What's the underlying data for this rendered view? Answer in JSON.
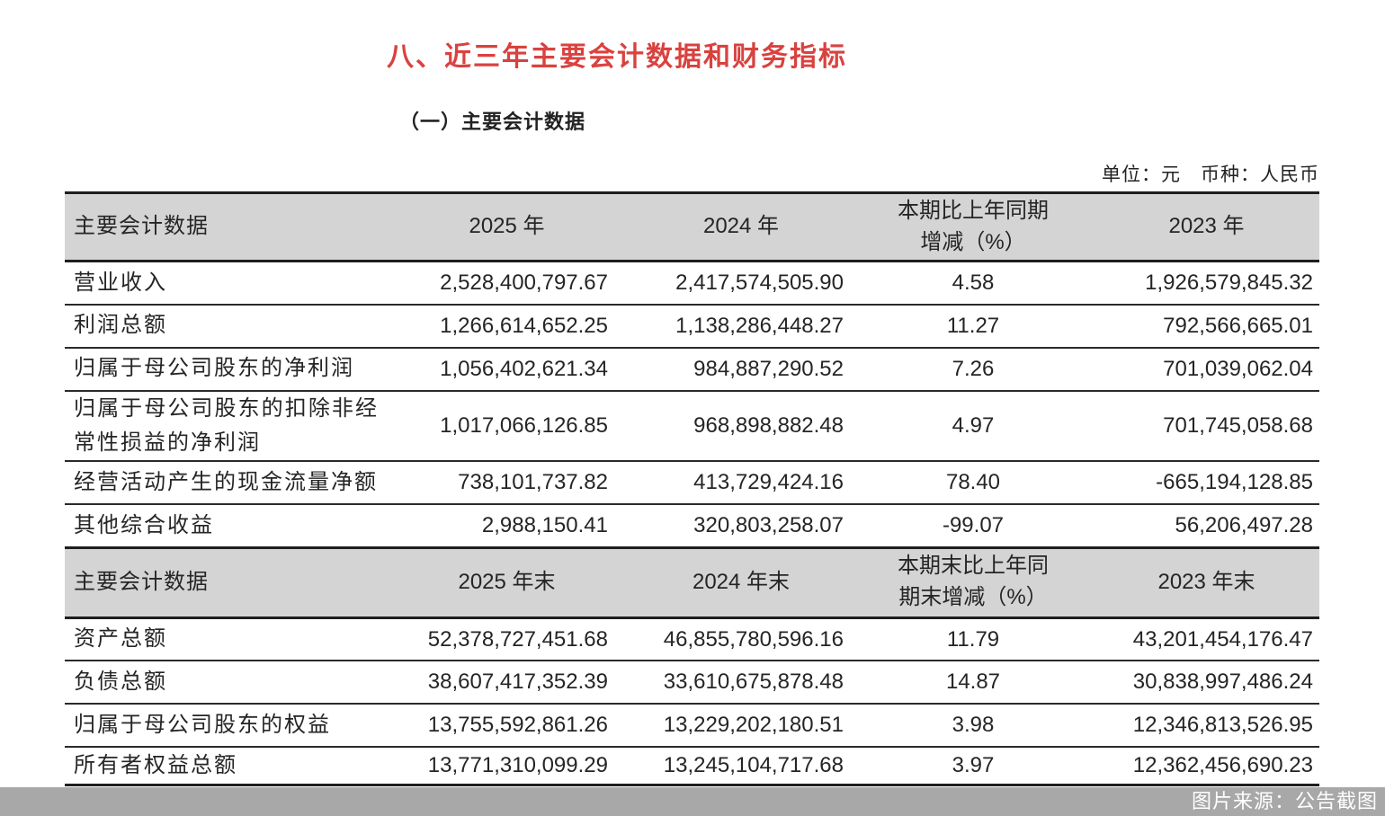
{
  "page": {
    "title": "八、近三年主要会计数据和财务指标",
    "subtitle": "（一）主要会计数据",
    "unit_note": "单位：元　币种：人民币",
    "source_note": "图片来源：公告截图"
  },
  "colors": {
    "title_red": "#d9423f",
    "header_bg": "#d4d4d4",
    "border_dark": "#1e1e1e",
    "source_bar_bg": "#a8a8a8"
  },
  "section1": {
    "headers": {
      "label": "主要会计数据",
      "y2025": "2025 年",
      "y2024": "2024 年",
      "change_line1": "本期比上年同期",
      "change_line2": "增减（%）",
      "y2023": "2023 年"
    },
    "rows": [
      {
        "label": "营业收入",
        "y2025": "2,528,400,797.67",
        "y2024": "2,417,574,505.90",
        "change": "4.58",
        "y2023": "1,926,579,845.32"
      },
      {
        "label": "利润总额",
        "y2025": "1,266,614,652.25",
        "y2024": "1,138,286,448.27",
        "change": "11.27",
        "y2023": "792,566,665.01"
      },
      {
        "label": "归属于母公司股东的净利润",
        "y2025": "1,056,402,621.34",
        "y2024": "984,887,290.52",
        "change": "7.26",
        "y2023": "701,039,062.04"
      },
      {
        "label": "归属于母公司股东的扣除非经常性损益的净利润",
        "y2025": "1,017,066,126.85",
        "y2024": "968,898,882.48",
        "change": "4.97",
        "y2023": "701,745,058.68"
      },
      {
        "label": "经营活动产生的现金流量净额",
        "y2025": "738,101,737.82",
        "y2024": "413,729,424.16",
        "change": "78.40",
        "y2023": "-665,194,128.85"
      },
      {
        "label": "其他综合收益",
        "y2025": "2,988,150.41",
        "y2024": "320,803,258.07",
        "change": "-99.07",
        "y2023": "56,206,497.28"
      }
    ]
  },
  "section2": {
    "headers": {
      "label": "主要会计数据",
      "y2025": "2025 年末",
      "y2024": "2024 年末",
      "change_line1": "本期末比上年同",
      "change_line2": "期末增减（%）",
      "y2023": "2023 年末"
    },
    "rows": [
      {
        "label": "资产总额",
        "y2025": "52,378,727,451.68",
        "y2024": "46,855,780,596.16",
        "change": "11.79",
        "y2023": "43,201,454,176.47"
      },
      {
        "label": "负债总额",
        "y2025": "38,607,417,352.39",
        "y2024": "33,610,675,878.48",
        "change": "14.87",
        "y2023": "30,838,997,486.24"
      },
      {
        "label": "归属于母公司股东的权益",
        "y2025": "13,755,592,861.26",
        "y2024": "13,229,202,180.51",
        "change": "3.98",
        "y2023": "12,346,813,526.95"
      },
      {
        "label": "所有者权益总额",
        "y2025": "13,771,310,099.29",
        "y2024": "13,245,104,717.68",
        "change": "3.97",
        "y2023": "12,362,456,690.23"
      }
    ]
  }
}
